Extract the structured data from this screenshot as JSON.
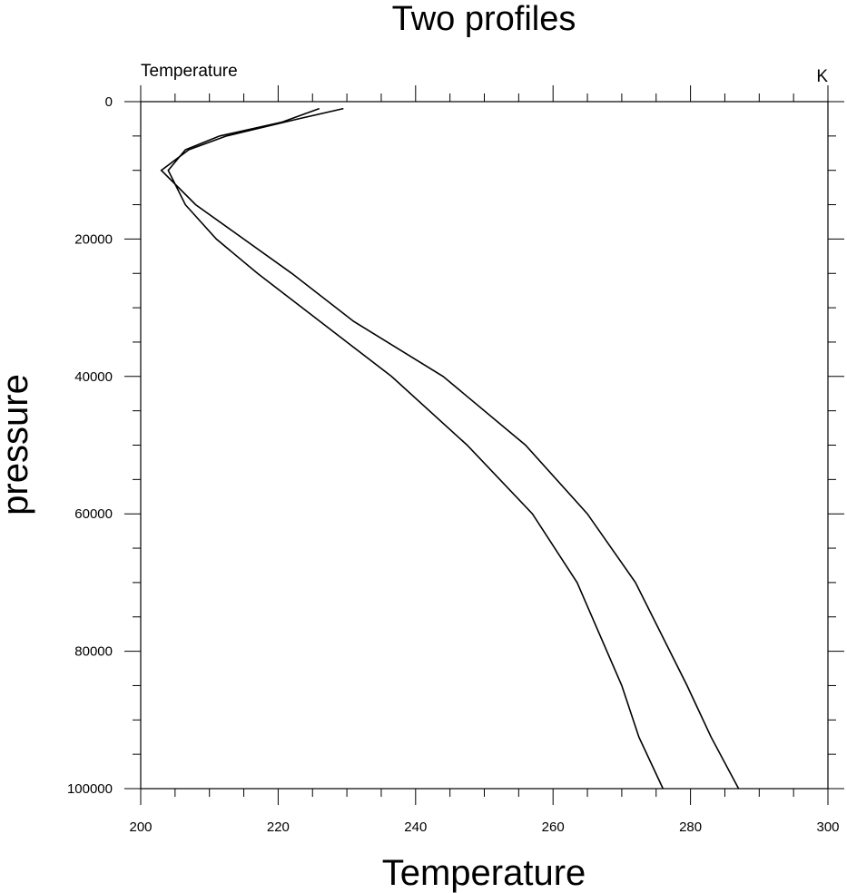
{
  "chart_data": {
    "type": "line",
    "title": "Two profiles",
    "subtitle_left": "Temperature",
    "subtitle_right": "K",
    "xlabel": "Temperature",
    "ylabel": "pressure",
    "xlim": [
      200,
      300
    ],
    "ylim": [
      0,
      100000
    ],
    "y_inverted": true,
    "x_major_ticks": [
      200,
      220,
      240,
      260,
      280,
      300
    ],
    "x_minor_step": 5,
    "y_major_ticks": [
      0,
      20000,
      40000,
      60000,
      80000,
      100000
    ],
    "y_minor_step": 5000,
    "tick_labels": {
      "x": [
        "200",
        "220",
        "240",
        "260",
        "280",
        "300"
      ],
      "y": [
        "0",
        "20000",
        "40000",
        "60000",
        "80000",
        "100000"
      ]
    },
    "grid": false,
    "series": [
      {
        "values": [
          {
            "x": 226.0,
            "y": 1000
          },
          {
            "x": 220.5,
            "y": 3000
          },
          {
            "x": 211.5,
            "y": 5000
          },
          {
            "x": 206.5,
            "y": 7000
          },
          {
            "x": 204.0,
            "y": 10000
          },
          {
            "x": 206.5,
            "y": 15000
          },
          {
            "x": 211.0,
            "y": 20000
          },
          {
            "x": 217.0,
            "y": 25000
          },
          {
            "x": 236.5,
            "y": 40000
          },
          {
            "x": 247.5,
            "y": 50000
          },
          {
            "x": 257.0,
            "y": 60000
          },
          {
            "x": 263.5,
            "y": 70000
          },
          {
            "x": 270.0,
            "y": 85000
          },
          {
            "x": 272.5,
            "y": 92500
          },
          {
            "x": 276.0,
            "y": 100000
          }
        ]
      },
      {
        "values": [
          {
            "x": 229.5,
            "y": 1000
          },
          {
            "x": 223.0,
            "y": 2500
          },
          {
            "x": 212.5,
            "y": 5000
          },
          {
            "x": 207.0,
            "y": 7000
          },
          {
            "x": 203.0,
            "y": 10000
          },
          {
            "x": 208.0,
            "y": 15000
          },
          {
            "x": 222.0,
            "y": 25000
          },
          {
            "x": 231.0,
            "y": 32000
          },
          {
            "x": 244.0,
            "y": 40000
          },
          {
            "x": 256.0,
            "y": 50000
          },
          {
            "x": 265.0,
            "y": 60000
          },
          {
            "x": 272.0,
            "y": 70000
          },
          {
            "x": 279.5,
            "y": 85000
          },
          {
            "x": 283.0,
            "y": 92500
          },
          {
            "x": 287.0,
            "y": 100000
          }
        ]
      }
    ]
  }
}
